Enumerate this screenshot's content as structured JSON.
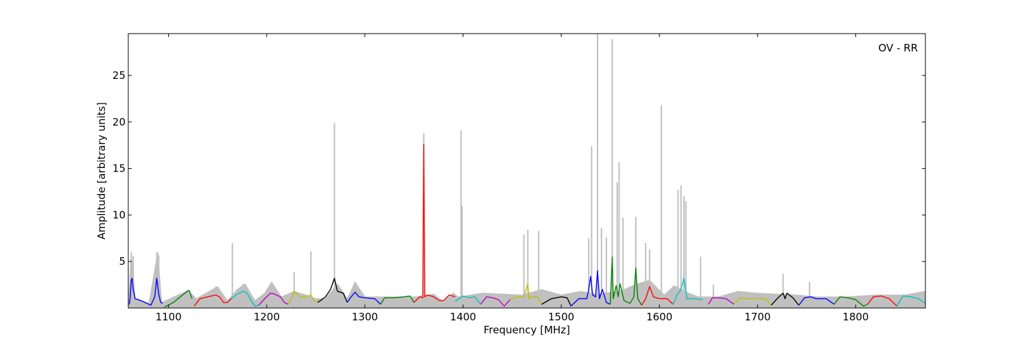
{
  "chart_data": {
    "type": "line",
    "title": "",
    "xlabel": "Frequency [MHz]",
    "ylabel": "Amplitude [arbitrary units]",
    "annotation": "OV - RR",
    "xlim": [
      1059,
      1871
    ],
    "ylim": [
      0,
      29.5
    ],
    "x_ticks": [
      1100,
      1200,
      1300,
      1400,
      1500,
      1600,
      1700,
      1800
    ],
    "y_ticks": [
      5,
      10,
      15,
      20,
      25
    ],
    "grid": false,
    "legend": "none",
    "background_color": "#c0c0c0",
    "band_colors": [
      "#0000ff",
      "#008000",
      "#ff0000",
      "#00bfbf",
      "#bf00bf",
      "#bfbf00",
      "#000000"
    ],
    "background_spikes": [
      {
        "x": 1062,
        "y": 6.0
      },
      {
        "x": 1064,
        "y": 5.6
      },
      {
        "x": 1088,
        "y": 6.0
      },
      {
        "x": 1090,
        "y": 5.7
      },
      {
        "x": 1148,
        "y": 2.3
      },
      {
        "x": 1165,
        "y": 7.0
      },
      {
        "x": 1176,
        "y": 2.6
      },
      {
        "x": 1205,
        "y": 2.8
      },
      {
        "x": 1228,
        "y": 3.9
      },
      {
        "x": 1245,
        "y": 6.1
      },
      {
        "x": 1269,
        "y": 19.9
      },
      {
        "x": 1290,
        "y": 2.8
      },
      {
        "x": 1360,
        "y": 18.8
      },
      {
        "x": 1398,
        "y": 19.1
      },
      {
        "x": 1399,
        "y": 11.0
      },
      {
        "x": 1462,
        "y": 7.9
      },
      {
        "x": 1466,
        "y": 8.4
      },
      {
        "x": 1477,
        "y": 8.3
      },
      {
        "x": 1528,
        "y": 7.5
      },
      {
        "x": 1531,
        "y": 17.4
      },
      {
        "x": 1537,
        "y": 29.5
      },
      {
        "x": 1541,
        "y": 8.6
      },
      {
        "x": 1546,
        "y": 7.6
      },
      {
        "x": 1552,
        "y": 28.9
      },
      {
        "x": 1557,
        "y": 13.5
      },
      {
        "x": 1559,
        "y": 15.7
      },
      {
        "x": 1563,
        "y": 9.7
      },
      {
        "x": 1576,
        "y": 9.8
      },
      {
        "x": 1586,
        "y": 7.0
      },
      {
        "x": 1590,
        "y": 6.3
      },
      {
        "x": 1602,
        "y": 21.8
      },
      {
        "x": 1619,
        "y": 12.7
      },
      {
        "x": 1622,
        "y": 13.2
      },
      {
        "x": 1625,
        "y": 12.0
      },
      {
        "x": 1627,
        "y": 11.5
      },
      {
        "x": 1642,
        "y": 5.5
      },
      {
        "x": 1655,
        "y": 2.5
      },
      {
        "x": 1726,
        "y": 3.7
      },
      {
        "x": 1753,
        "y": 2.8
      },
      {
        "x": 1868,
        "y": 1.8
      }
    ],
    "background_envelope": [
      [
        1059,
        0.3
      ],
      [
        1062,
        6.0
      ],
      [
        1066,
        1.0
      ],
      [
        1080,
        0.5
      ],
      [
        1089,
        6.0
      ],
      [
        1093,
        0.6
      ],
      [
        1120,
        1.9
      ],
      [
        1128,
        1.0
      ],
      [
        1150,
        2.3
      ],
      [
        1160,
        0.8
      ],
      [
        1170,
        2.0
      ],
      [
        1178,
        2.6
      ],
      [
        1188,
        0.8
      ],
      [
        1198,
        1.6
      ],
      [
        1205,
        2.8
      ],
      [
        1215,
        1.2
      ],
      [
        1228,
        1.8
      ],
      [
        1240,
        1.4
      ],
      [
        1250,
        1.0
      ],
      [
        1260,
        1.0
      ],
      [
        1272,
        2.6
      ],
      [
        1282,
        1.0
      ],
      [
        1290,
        2.8
      ],
      [
        1300,
        1.2
      ],
      [
        1320,
        1.2
      ],
      [
        1350,
        1.2
      ],
      [
        1370,
        1.5
      ],
      [
        1380,
        0.7
      ],
      [
        1390,
        1.6
      ],
      [
        1395,
        1.2
      ],
      [
        1420,
        1.6
      ],
      [
        1460,
        1.4
      ],
      [
        1480,
        2.0
      ],
      [
        1500,
        1.4
      ],
      [
        1520,
        1.8
      ],
      [
        1535,
        1.5
      ],
      [
        1560,
        1.8
      ],
      [
        1575,
        2.5
      ],
      [
        1590,
        3.0
      ],
      [
        1605,
        1.4
      ],
      [
        1615,
        2.4
      ],
      [
        1630,
        1.6
      ],
      [
        1640,
        1.2
      ],
      [
        1660,
        1.2
      ],
      [
        1680,
        1.8
      ],
      [
        1700,
        1.6
      ],
      [
        1720,
        1.5
      ],
      [
        1740,
        1.4
      ],
      [
        1760,
        1.2
      ],
      [
        1790,
        1.2
      ],
      [
        1820,
        1.4
      ],
      [
        1850,
        1.4
      ],
      [
        1871,
        1.8
      ]
    ],
    "series": [
      {
        "color_index": 0,
        "x": [
          1060,
          1061,
          1062,
          1063,
          1064,
          1066,
          1072,
          1078,
          1082,
          1086,
          1088,
          1090,
          1092,
          1094
        ],
        "y": [
          0.4,
          1.2,
          3.0,
          3.2,
          2.0,
          1.0,
          0.8,
          0.5,
          0.3,
          1.2,
          3.2,
          1.5,
          0.6,
          0.5
        ]
      },
      {
        "color_index": 1,
        "x": [
          1096,
          1105,
          1112,
          1118,
          1121,
          1124
        ],
        "y": [
          0.1,
          0.6,
          1.2,
          1.7,
          1.9,
          1.0
        ]
      },
      {
        "color_index": 2,
        "x": [
          1126,
          1132,
          1140,
          1148,
          1152,
          1156,
          1160,
          1164
        ],
        "y": [
          0.2,
          1.0,
          1.2,
          1.4,
          1.2,
          0.6,
          0.6,
          1.0
        ]
      },
      {
        "color_index": 3,
        "x": [
          1164,
          1170,
          1176,
          1180,
          1184,
          1188,
          1192
        ],
        "y": [
          1.0,
          1.5,
          1.8,
          1.6,
          0.8,
          0.2,
          0.3
        ]
      },
      {
        "color_index": 4,
        "x": [
          1192,
          1198,
          1204,
          1208,
          1214,
          1218,
          1222
        ],
        "y": [
          0.3,
          1.0,
          1.6,
          1.5,
          1.2,
          0.6,
          0.4
        ]
      },
      {
        "color_index": 5,
        "x": [
          1222,
          1226,
          1228,
          1234,
          1240,
          1245,
          1248,
          1252
        ],
        "y": [
          0.4,
          1.2,
          1.8,
          1.2,
          1.2,
          1.4,
          0.8,
          0.6
        ]
      },
      {
        "color_index": 6,
        "x": [
          1252,
          1260,
          1265,
          1269,
          1272,
          1278,
          1282
        ],
        "y": [
          0.6,
          1.2,
          2.0,
          3.2,
          1.8,
          1.6,
          0.6
        ]
      },
      {
        "color_index": 0,
        "x": [
          1282,
          1286,
          1290,
          1294,
          1300,
          1310,
          1316
        ],
        "y": [
          0.6,
          1.2,
          1.7,
          1.2,
          1.1,
          1.0,
          0.4
        ]
      },
      {
        "color_index": 1,
        "x": [
          1316,
          1320,
          1330,
          1340,
          1346,
          1350
        ],
        "y": [
          0.4,
          1.1,
          1.1,
          1.2,
          1.3,
          0.6
        ]
      },
      {
        "color_index": 2,
        "x": [
          1350,
          1356,
          1359,
          1360,
          1361,
          1364,
          1370,
          1376,
          1380,
          1386,
          1392
        ],
        "y": [
          0.6,
          1.2,
          1.1,
          17.6,
          1.2,
          1.4,
          1.2,
          0.8,
          0.8,
          1.4,
          1.2
        ]
      },
      {
        "color_index": 3,
        "x": [
          1392,
          1396,
          1400,
          1406,
          1412,
          1418
        ],
        "y": [
          0.7,
          1.0,
          1.3,
          1.1,
          1.2,
          0.4
        ]
      },
      {
        "color_index": 4,
        "x": [
          1418,
          1424,
          1430,
          1436,
          1442,
          1448
        ],
        "y": [
          0.4,
          1.2,
          1.1,
          0.9,
          0.2,
          0.9
        ]
      },
      {
        "color_index": 5,
        "x": [
          1448,
          1456,
          1462,
          1466,
          1467,
          1470,
          1476,
          1480
        ],
        "y": [
          0.9,
          1.2,
          1.2,
          2.6,
          1.0,
          1.2,
          1.2,
          0.4
        ]
      },
      {
        "color_index": 6,
        "x": [
          1480,
          1490,
          1500,
          1506,
          1510
        ],
        "y": [
          0.4,
          1.0,
          1.2,
          1.1,
          0.2
        ]
      },
      {
        "color_index": 0,
        "x": [
          1510,
          1518,
          1526,
          1528,
          1530,
          1532,
          1535,
          1537,
          1539,
          1542,
          1546,
          1550
        ],
        "y": [
          0.2,
          1.0,
          1.0,
          2.0,
          3.4,
          1.4,
          1.2,
          4.0,
          1.0,
          2.0,
          0.6,
          0.4
        ]
      },
      {
        "color_index": 1,
        "x": [
          1550,
          1552,
          1553,
          1556,
          1558,
          1560,
          1564,
          1570,
          1574,
          1576,
          1578,
          1582
        ],
        "y": [
          0.4,
          5.5,
          1.0,
          2.4,
          1.2,
          2.6,
          0.8,
          0.5,
          1.2,
          4.3,
          1.0,
          0.3
        ]
      },
      {
        "color_index": 2,
        "x": [
          1582,
          1586,
          1590,
          1594,
          1600,
          1608,
          1614
        ],
        "y": [
          0.3,
          1.0,
          2.3,
          1.2,
          1.0,
          1.0,
          0.4
        ]
      },
      {
        "color_index": 3,
        "x": [
          1614,
          1618,
          1622,
          1625,
          1628,
          1636,
          1644
        ],
        "y": [
          0.4,
          1.4,
          2.0,
          3.2,
          1.0,
          1.0,
          0.9
        ]
      },
      {
        "color_index": 4,
        "x": [
          1650,
          1654,
          1660,
          1668,
          1676
        ],
        "y": [
          0.4,
          1.1,
          1.1,
          1.0,
          0.4
        ]
      },
      {
        "color_index": 5,
        "x": [
          1676,
          1682,
          1690,
          1700,
          1708,
          1714
        ],
        "y": [
          0.4,
          1.1,
          1.0,
          1.0,
          1.0,
          0.3
        ]
      },
      {
        "color_index": 6,
        "x": [
          1714,
          1720,
          1726,
          1728,
          1730,
          1736,
          1742
        ],
        "y": [
          0.3,
          1.0,
          1.6,
          1.0,
          1.6,
          1.1,
          0.3
        ]
      },
      {
        "color_index": 0,
        "x": [
          1742,
          1748,
          1754,
          1760,
          1770,
          1778
        ],
        "y": [
          0.3,
          1.1,
          1.2,
          1.0,
          1.0,
          0.4
        ]
      },
      {
        "color_index": 1,
        "x": [
          1778,
          1784,
          1792,
          1800,
          1808,
          1812
        ],
        "y": [
          0.4,
          1.2,
          1.1,
          0.9,
          0.2,
          0.4
        ]
      },
      {
        "color_index": 2,
        "x": [
          1812,
          1818,
          1826,
          1834,
          1842
        ],
        "y": [
          0.4,
          1.2,
          1.3,
          1.0,
          0.2
        ]
      },
      {
        "color_index": 3,
        "x": [
          1842,
          1848,
          1856,
          1864,
          1871
        ],
        "y": [
          0.2,
          1.3,
          1.2,
          1.0,
          0.5
        ]
      }
    ]
  }
}
